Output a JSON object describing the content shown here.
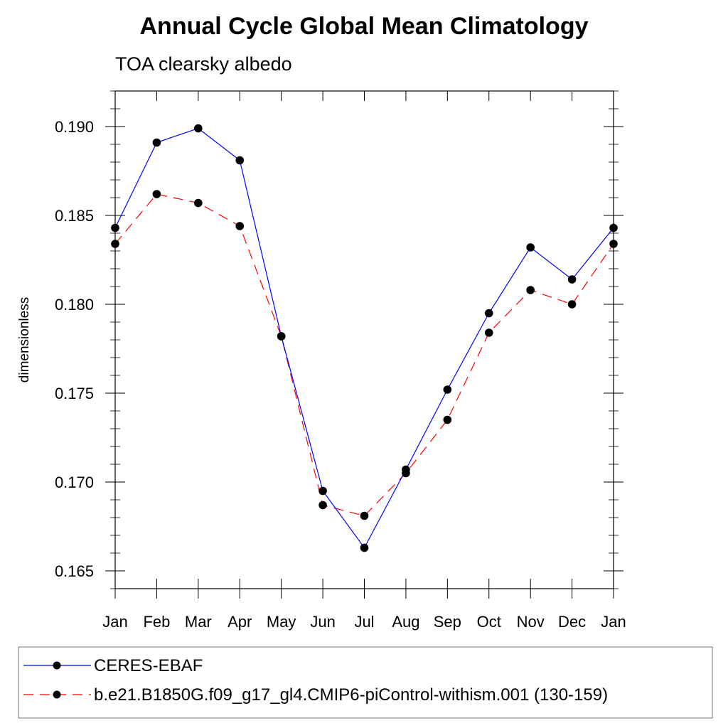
{
  "chart_data": {
    "type": "line",
    "title": "Annual Cycle Global Mean Climatology",
    "subtitle": "TOA clearsky albedo",
    "xlabel": "",
    "ylabel": "dimensionless",
    "categories": [
      "Jan",
      "Feb",
      "Mar",
      "Apr",
      "May",
      "Jun",
      "Jul",
      "Aug",
      "Sep",
      "Oct",
      "Nov",
      "Dec",
      "Jan"
    ],
    "yticks": [
      "0.165",
      "0.170",
      "0.175",
      "0.180",
      "0.185",
      "0.190"
    ],
    "ylim": [
      0.164,
      0.192
    ],
    "grid": false,
    "legend_position": "bottom",
    "series": [
      {
        "name": "CERES-EBAF",
        "color": "#0000ff",
        "line_style": "solid",
        "marker": "filled-circle",
        "values": [
          0.1843,
          0.1891,
          0.1899,
          0.1881,
          0.1782,
          0.1695,
          0.1663,
          0.1707,
          0.1752,
          0.1795,
          0.1832,
          0.1814,
          0.1843
        ]
      },
      {
        "name": "b.e21.B1850G.f09_g17_gl4.CMIP6-piControl-withism.001 (130-159)",
        "color": "#ff0000",
        "line_style": "dashed",
        "marker": "filled-circle",
        "values": [
          0.1834,
          0.1862,
          0.1857,
          0.1844,
          0.1782,
          0.1687,
          0.1681,
          0.1705,
          0.1735,
          0.1784,
          0.1808,
          0.18,
          0.1834
        ]
      }
    ]
  }
}
